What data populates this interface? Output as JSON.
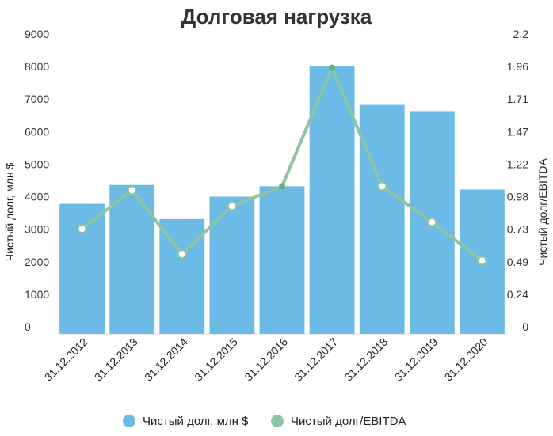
{
  "chart_data": {
    "type": "bar+line",
    "title": "Долговая нагрузка",
    "categories": [
      "31.12.2012",
      "31.12.2013",
      "31.12.2014",
      "31.12.2015",
      "31.12.2016",
      "31.12.2017",
      "31.12.2018",
      "31.12.2019",
      "31.12.2020"
    ],
    "series": [
      {
        "name": "Чистый долг, млн $",
        "type": "bar",
        "axis": "left",
        "values": [
          4000,
          4580,
          3530,
          4220,
          4540,
          8220,
          7040,
          6850,
          4440
        ],
        "color": "#6bbbe6"
      },
      {
        "name": "Чистый долг/EBITDA",
        "type": "line",
        "axis": "right",
        "values": [
          0.79,
          1.08,
          0.6,
          0.96,
          1.11,
          2.0,
          1.11,
          0.84,
          0.55
        ],
        "color": "#8dc4a2"
      }
    ],
    "ylabel_left": "Чистый долг, млн $",
    "ylabel_right": "Чистый долг/EBITDA",
    "ylim_left": [
      0,
      9000
    ],
    "ylim_right": [
      0,
      2.2
    ],
    "yticks_left": [
      "0",
      "1000",
      "2000",
      "3000",
      "4000",
      "5000",
      "6000",
      "7000",
      "8000",
      "9000"
    ],
    "yticks_right": [
      "0",
      "0.24",
      "0.49",
      "0.73",
      "0.98",
      "1.22",
      "1.47",
      "1.71",
      "1.96",
      "2.2"
    ],
    "grid": false,
    "legend_position": "bottom"
  }
}
